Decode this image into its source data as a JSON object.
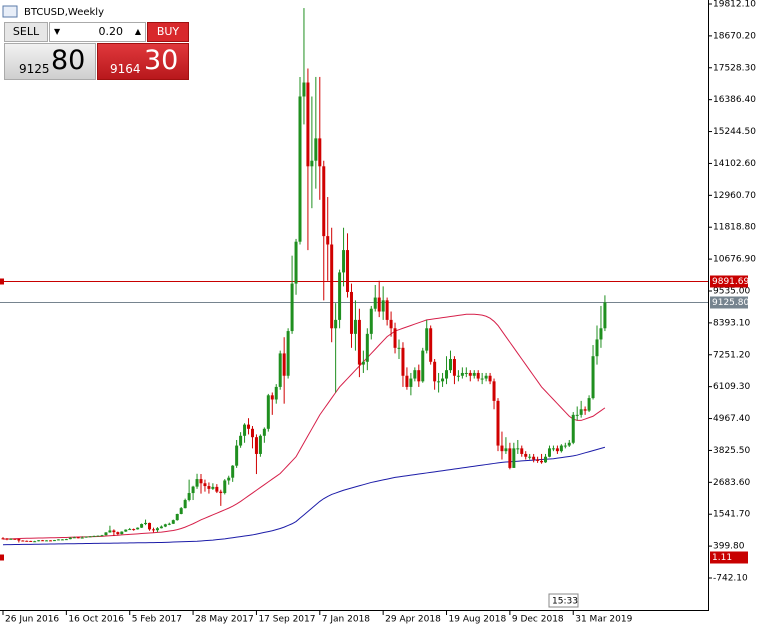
{
  "chart_data": {
    "type": "candlestick",
    "title": "BTCUSD,Weekly",
    "categories": [
      "26 Jun 2016",
      null,
      null,
      null,
      null,
      null,
      null,
      null,
      null,
      null,
      null,
      null,
      null,
      null,
      null,
      null,
      "16 Oct 2016",
      null,
      null,
      null,
      null,
      null,
      null,
      null,
      null,
      null,
      null,
      null,
      null,
      null,
      null,
      null,
      "5 Feb 2017",
      null,
      null,
      null,
      null,
      null,
      null,
      null,
      null,
      null,
      null,
      null,
      null,
      null,
      null,
      null,
      "28 May 2017",
      null,
      null,
      null,
      null,
      null,
      null,
      null,
      null,
      null,
      null,
      null,
      null,
      null,
      null,
      null,
      "17 Sep 2017",
      null,
      null,
      null,
      null,
      null,
      null,
      null,
      null,
      null,
      null,
      null,
      null,
      null,
      null,
      null,
      "7 Jan 2018",
      null,
      null,
      null,
      null,
      null,
      null,
      null,
      null,
      null,
      null,
      null,
      null,
      null,
      null,
      null,
      "29 Apr 2018",
      null,
      null,
      null,
      null,
      null,
      null,
      null,
      null,
      null,
      null,
      null,
      null,
      null,
      null,
      null,
      "19 Aug 2018",
      null,
      null,
      null,
      null,
      null,
      null,
      null,
      null,
      null,
      null,
      null,
      null,
      null,
      null,
      null,
      "9 Dec 2018",
      null,
      null,
      null,
      null,
      null,
      null,
      null,
      null,
      null,
      null,
      null,
      null,
      null,
      null,
      null,
      "31 Mar 2019",
      null,
      null,
      null,
      null,
      null,
      null,
      null,
      null
    ],
    "open": [
      680,
      670,
      650,
      660,
      655,
      600,
      590,
      585,
      575,
      575,
      610,
      605,
      605,
      600,
      615,
      640,
      640,
      650,
      700,
      715,
      700,
      705,
      740,
      750,
      765,
      775,
      790,
      890,
      960,
      900,
      830,
      920,
      990,
      1010,
      1000,
      1060,
      1190,
      1230,
      1000,
      970,
      1040,
      1100,
      1180,
      1200,
      1330,
      1550,
      1760,
      2050,
      2300,
      2530,
      2800,
      2650,
      2550,
      2450,
      2520,
      2350,
      2300,
      2750,
      2850,
      3280,
      4000,
      4350,
      4750,
      4600,
      4300,
      3700,
      4350,
      4600,
      5800,
      5650,
      6100,
      7300,
      6500,
      8100,
      9800,
      11300,
      16500,
      17000,
      14000,
      14200,
      15000,
      14000,
      11500,
      11200,
      8200,
      8500,
      10200,
      11000,
      9500,
      8000,
      8500,
      6900,
      7000,
      8000,
      8900,
      9300,
      8800,
      9200,
      8500,
      8200,
      7500,
      7500,
      6500,
      6100,
      6400,
      6700,
      6300,
      7400,
      8200,
      7000,
      6300,
      6300,
      6400,
      6700,
      7100,
      6500,
      6500,
      6600,
      6600,
      6500,
      6600,
      6400,
      6400,
      6500,
      6300,
      5600,
      4000,
      3800,
      3900,
      3200,
      3900,
      3900,
      3700,
      3600,
      3600,
      3500,
      3450,
      3400,
      3600,
      3900,
      3900,
      3800,
      4000,
      4000,
      4100,
      5100,
      5100,
      5300,
      5250,
      5700,
      7200,
      7800,
      8200
    ],
    "high": [
      720,
      690,
      680,
      670,
      660,
      610,
      600,
      590,
      590,
      615,
      620,
      612,
      610,
      620,
      645,
      650,
      660,
      720,
      740,
      720,
      750,
      745,
      760,
      775,
      780,
      800,
      900,
      1130,
      1000,
      920,
      930,
      1000,
      1050,
      1030,
      1070,
      1210,
      1350,
      1240,
      1060,
      1080,
      1140,
      1200,
      1240,
      1350,
      1560,
      1800,
      2100,
      2780,
      2560,
      2990,
      2980,
      2780,
      2680,
      2650,
      2620,
      2420,
      2800,
      2920,
      3300,
      4200,
      4480,
      4800,
      4980,
      4700,
      4400,
      4400,
      4650,
      5850,
      5900,
      6200,
      7400,
      7880,
      8200,
      10800,
      11400,
      17200,
      19666,
      17500,
      16500,
      17200,
      17200,
      14200,
      12900,
      11800,
      9100,
      10300,
      11800,
      11600,
      9800,
      9200,
      8900,
      7400,
      8200,
      9000,
      9750,
      9900,
      9700,
      9300,
      8800,
      8400,
      7800,
      7700,
      6800,
      6600,
      6800,
      6900,
      7500,
      8500,
      8300,
      7100,
      6600,
      6600,
      7200,
      7400,
      7200,
      6700,
      6800,
      6800,
      6700,
      6700,
      6700,
      6600,
      6600,
      6600,
      6400,
      5700,
      4500,
      4300,
      4100,
      4100,
      4200,
      4000,
      3800,
      3700,
      3700,
      3600,
      3700,
      3700,
      4000,
      4000,
      4000,
      4050,
      4100,
      4200,
      5200,
      5400,
      5600,
      5400,
      5800,
      7600,
      8300,
      9000,
      9380
    ],
    "low": [
      640,
      610,
      640,
      640,
      530,
      570,
      565,
      560,
      565,
      570,
      595,
      600,
      590,
      595,
      610,
      630,
      630,
      645,
      690,
      680,
      690,
      700,
      730,
      740,
      755,
      770,
      785,
      880,
      760,
      780,
      820,
      910,
      980,
      950,
      990,
      1050,
      1150,
      950,
      890,
      900,
      1030,
      1080,
      1150,
      1190,
      1310,
      1540,
      1750,
      2000,
      2050,
      2450,
      2280,
      2350,
      2280,
      2410,
      2300,
      1840,
      2250,
      2600,
      2700,
      3200,
      3920,
      4100,
      4400,
      3900,
      2980,
      3600,
      4100,
      4500,
      5100,
      5500,
      6000,
      5500,
      6400,
      8000,
      9400,
      11200,
      15500,
      11000,
      12500,
      13200,
      12800,
      9200,
      9900,
      7700,
      5900,
      8200,
      9700,
      9300,
      7500,
      7400,
      6450,
      6600,
      6700,
      7800,
      8800,
      8600,
      8500,
      8300,
      7900,
      7300,
      7100,
      6100,
      6000,
      5800,
      6300,
      6100,
      6250,
      7300,
      6900,
      6000,
      5900,
      6100,
      6200,
      6600,
      6200,
      6300,
      6400,
      6450,
      6300,
      6400,
      6300,
      6200,
      6300,
      6200,
      5300,
      3800,
      3500,
      3700,
      3150,
      3200,
      3700,
      3600,
      3500,
      3500,
      3400,
      3380,
      3350,
      3380,
      3580,
      3800,
      3700,
      3750,
      3900,
      3950,
      4050,
      4900,
      5000,
      5100,
      5200,
      5650,
      6900,
      7500,
      8100
    ],
    "close": [
      670,
      650,
      660,
      655,
      600,
      590,
      585,
      575,
      575,
      610,
      605,
      605,
      600,
      615,
      640,
      640,
      650,
      700,
      715,
      700,
      705,
      740,
      750,
      765,
      775,
      790,
      890,
      960,
      900,
      830,
      920,
      990,
      1010,
      1000,
      1060,
      1190,
      1230,
      1000,
      970,
      1040,
      1100,
      1180,
      1200,
      1330,
      1550,
      1760,
      2050,
      2300,
      2530,
      2800,
      2650,
      2550,
      2450,
      2520,
      2350,
      2300,
      2750,
      2850,
      3280,
      4000,
      4350,
      4750,
      4600,
      4300,
      3700,
      4350,
      4600,
      5800,
      5650,
      6100,
      7300,
      6500,
      8100,
      9800,
      11300,
      16500,
      17000,
      14000,
      14200,
      15000,
      14000,
      11500,
      11200,
      8200,
      8500,
      10200,
      11000,
      9500,
      8000,
      8500,
      6900,
      7000,
      8000,
      8900,
      9300,
      8800,
      9200,
      8500,
      8200,
      7500,
      7500,
      6500,
      6100,
      6400,
      6700,
      6300,
      7400,
      8200,
      7000,
      6300,
      6300,
      6400,
      6700,
      7100,
      6500,
      6500,
      6600,
      6600,
      6500,
      6600,
      6400,
      6400,
      6500,
      6300,
      5600,
      4000,
      3800,
      3900,
      3200,
      3900,
      3900,
      3700,
      3600,
      3600,
      3500,
      3450,
      3400,
      3600,
      3900,
      3900,
      3800,
      4000,
      4000,
      4100,
      5100,
      5100,
      5300,
      5250,
      5700,
      7200,
      7800,
      8200,
      9125.8
    ],
    "up_color": "#1f8f1f",
    "down_color": "#d00000",
    "ma_lines": [
      {
        "color": "#d6204a",
        "values": [
          650,
          655,
          660,
          665,
          670,
          675,
          680,
          680,
          685,
          690,
          690,
          695,
          700,
          700,
          705,
          710,
          710,
          715,
          720,
          725,
          730,
          730,
          735,
          740,
          745,
          750,
          760,
          770,
          780,
          790,
          800,
          810,
          820,
          830,
          840,
          850,
          860,
          870,
          880,
          890,
          900,
          920,
          940,
          960,
          990,
          1030,
          1080,
          1140,
          1200,
          1270,
          1340,
          1400,
          1460,
          1520,
          1580,
          1640,
          1700,
          1760,
          1830,
          1910,
          2000,
          2100,
          2200,
          2300,
          2400,
          2500,
          2600,
          2700,
          2800,
          2900,
          3000,
          3150,
          3300,
          3450,
          3600,
          3850,
          4100,
          4350,
          4600,
          4850,
          5100,
          5300,
          5500,
          5700,
          5900,
          6100,
          6250,
          6400,
          6550,
          6700,
          6850,
          7000,
          7150,
          7300,
          7450,
          7600,
          7750,
          7900,
          8000,
          8100,
          8150,
          8200,
          8250,
          8300,
          8350,
          8400,
          8450,
          8500,
          8520,
          8540,
          8560,
          8580,
          8600,
          8620,
          8640,
          8660,
          8680,
          8700,
          8700,
          8700,
          8690,
          8670,
          8630,
          8560,
          8450,
          8300,
          8100,
          7900,
          7700,
          7500,
          7300,
          7100,
          6900,
          6700,
          6500,
          6300,
          6100,
          5950,
          5800,
          5650,
          5500,
          5350,
          5200,
          5050,
          4950,
          4900,
          4900,
          4950,
          5000,
          5050,
          5150,
          5250,
          5350
        ]
      },
      {
        "color": "#1c1ca8",
        "values": [
          450,
          452,
          454,
          456,
          458,
          460,
          462,
          464,
          466,
          468,
          470,
          472,
          474,
          476,
          478,
          480,
          482,
          484,
          486,
          488,
          490,
          492,
          494,
          496,
          498,
          500,
          502,
          504,
          506,
          508,
          510,
          512,
          514,
          516,
          518,
          520,
          522,
          524,
          526,
          528,
          530,
          535,
          540,
          545,
          550,
          555,
          560,
          565,
          570,
          575,
          585,
          595,
          605,
          615,
          630,
          645,
          660,
          680,
          700,
          720,
          740,
          760,
          780,
          800,
          830,
          860,
          890,
          920,
          950,
          990,
          1030,
          1080,
          1140,
          1200,
          1280,
          1400,
          1520,
          1640,
          1760,
          1880,
          2000,
          2100,
          2180,
          2250,
          2300,
          2350,
          2400,
          2440,
          2480,
          2520,
          2560,
          2600,
          2640,
          2680,
          2710,
          2740,
          2770,
          2800,
          2830,
          2860,
          2880,
          2900,
          2920,
          2940,
          2960,
          2980,
          3000,
          3020,
          3040,
          3060,
          3080,
          3100,
          3120,
          3140,
          3160,
          3180,
          3200,
          3220,
          3240,
          3260,
          3280,
          3300,
          3320,
          3340,
          3360,
          3380,
          3400,
          3410,
          3420,
          3430,
          3440,
          3450,
          3460,
          3470,
          3480,
          3490,
          3500,
          3510,
          3520,
          3530,
          3550,
          3570,
          3590,
          3610,
          3630,
          3660,
          3700,
          3740,
          3780,
          3820,
          3860,
          3900,
          3940
        ]
      }
    ],
    "hlines": [
      {
        "value": 9891.69,
        "color": "#c80000",
        "line": true,
        "left_marker": true
      },
      {
        "value": 9125.8,
        "label": "9125.80",
        "color": "#76848f",
        "line": true,
        "left_marker": false
      },
      {
        "value": 1.11,
        "color": "#c80000",
        "line": false,
        "left_marker": true
      }
    ],
    "ylim": [
      -1888,
      19955
    ],
    "yticks": [
      {
        "value": 19812.1,
        "label": "19812.10"
      },
      {
        "value": 18670.2,
        "label": "18670.20"
      },
      {
        "value": 17528.3,
        "label": "17528.30"
      },
      {
        "value": 16386.4,
        "label": "16386.40"
      },
      {
        "value": 15244.5,
        "label": "15244.50"
      },
      {
        "value": 14102.6,
        "label": "14102.60"
      },
      {
        "value": 12960.7,
        "label": "12960.70"
      },
      {
        "value": 11818.8,
        "label": "11818.80"
      },
      {
        "value": 10676.9,
        "label": "10676.90"
      },
      {
        "value": 9535,
        "label": "9535.00"
      },
      {
        "value": 8393.1,
        "label": "8393.10"
      },
      {
        "value": 7251.2,
        "label": "7251.20"
      },
      {
        "value": 6109.3,
        "label": "6109.30"
      },
      {
        "value": 4967.4,
        "label": "4967.40"
      },
      {
        "value": 3825.5,
        "label": "3825.50"
      },
      {
        "value": 2683.6,
        "label": "2683.60"
      },
      {
        "value": 1541.7,
        "label": "1541.70"
      },
      {
        "value": 399.8,
        "label": "399.80"
      },
      {
        "value": -742.1,
        "label": "-742.10"
      }
    ],
    "time_label": "15:33"
  },
  "trade_panel": {
    "sell": "SELL",
    "lot": "0.20",
    "buy": "BUY",
    "sell_price_big": "9125",
    "sell_price_pips": "80",
    "buy_price_big": "9164",
    "buy_price_pips": "30"
  }
}
